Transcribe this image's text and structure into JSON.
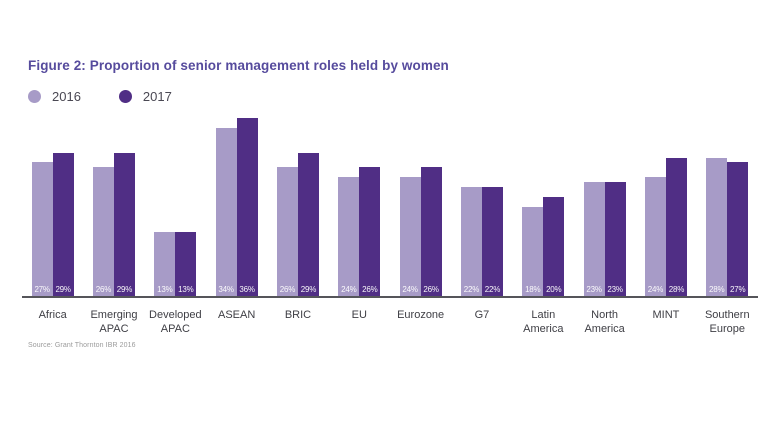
{
  "title": "Figure 2: Proportion of senior management roles held by women",
  "source": "Source: Grant Thornton IBR 2016",
  "colors": {
    "series_2016": "#a79bc7",
    "series_2017": "#502e85",
    "title_text": "#564b9d",
    "axis_line": "#55555a"
  },
  "chart_data": {
    "type": "bar",
    "title": "Figure 2: Proportion of senior management roles held by women",
    "categories": [
      "Africa",
      "Emerging APAC",
      "Developed APAC",
      "ASEAN",
      "BRIC",
      "EU",
      "Eurozone",
      "G7",
      "Latin America",
      "North America",
      "MINT",
      "Southern Europe"
    ],
    "series": [
      {
        "name": "2016",
        "color": "#a79bc7",
        "values": [
          27,
          26,
          13,
          34,
          26,
          24,
          24,
          22,
          18,
          23,
          24,
          28
        ]
      },
      {
        "name": "2017",
        "color": "#502e85",
        "values": [
          29,
          29,
          13,
          36,
          29,
          26,
          26,
          22,
          20,
          23,
          28,
          27
        ]
      }
    ],
    "value_suffix": "%",
    "value_labels": "inside-bottom, white",
    "xlabel": "",
    "ylabel": "",
    "ylim": [
      0,
      38
    ],
    "grid": false,
    "y_axis_visible": false,
    "legend_position": "top-left",
    "source_note": "Source: Grant Thornton IBR 2016"
  }
}
